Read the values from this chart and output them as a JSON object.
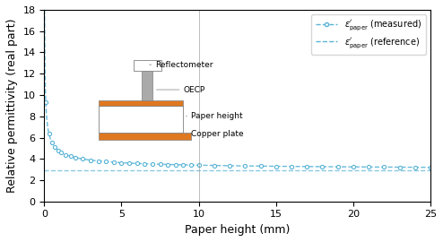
{
  "title": "",
  "xlabel": "Paper height (mm)",
  "ylabel": "Relative permittivity (real part)",
  "xlim": [
    0,
    25
  ],
  "ylim": [
    0,
    18
  ],
  "yticks": [
    0,
    2,
    4,
    6,
    8,
    10,
    12,
    14,
    16,
    18
  ],
  "xticks": [
    0,
    5,
    10,
    15,
    20,
    25
  ],
  "reference_value": 2.9,
  "measured_color": "#5ab4d6",
  "reference_color": "#5ab4d6",
  "vertical_line_x": 10,
  "annotation_reflectometer": "Reflectometer",
  "annotation_oecp": "OECP",
  "annotation_paper_height": "Paper height",
  "annotation_copper_plate": "Copper plate",
  "legend_measured": "$\\varepsilon^{\\prime}_{\\mathrm{paper}}$ (measured)",
  "legend_reference": "$\\varepsilon^{\\prime}_{\\mathrm{paper}}$ (reference)"
}
